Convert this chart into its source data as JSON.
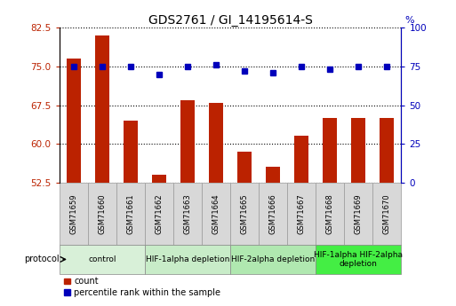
{
  "title": "GDS2761 / GI_14195614-S",
  "samples": [
    "GSM71659",
    "GSM71660",
    "GSM71661",
    "GSM71662",
    "GSM71663",
    "GSM71664",
    "GSM71665",
    "GSM71666",
    "GSM71667",
    "GSM71668",
    "GSM71669",
    "GSM71670"
  ],
  "counts": [
    76.5,
    81.0,
    64.5,
    54.0,
    68.5,
    68.0,
    58.5,
    55.5,
    61.5,
    65.0,
    65.0,
    65.0
  ],
  "percentiles": [
    75,
    75,
    75,
    70,
    75,
    76,
    72,
    71,
    75,
    73,
    75,
    75
  ],
  "ylim_left": [
    52.5,
    82.5
  ],
  "ylim_right": [
    0,
    100
  ],
  "yticks_left": [
    52.5,
    60.0,
    67.5,
    75.0,
    82.5
  ],
  "yticks_right": [
    0,
    25,
    50,
    75,
    100
  ],
  "bar_color": "#bb2200",
  "dot_color": "#0000bb",
  "grid_color": "#000000",
  "protocol_groups": [
    {
      "label": "control",
      "start": 0,
      "end": 2,
      "color": "#d8f0d8"
    },
    {
      "label": "HIF-1alpha depletion",
      "start": 3,
      "end": 5,
      "color": "#c8ecc8"
    },
    {
      "label": "HIF-2alpha depletion",
      "start": 6,
      "end": 8,
      "color": "#b0e8b0"
    },
    {
      "label": "HIF-1alpha HIF-2alpha\ndepletion",
      "start": 9,
      "end": 11,
      "color": "#44ee44"
    }
  ],
  "tick_color_left": "#bb2200",
  "tick_color_right": "#0000bb",
  "sample_box_color": "#d8d8d8",
  "sample_box_edge": "#999999",
  "protocol_edge": "#888888"
}
